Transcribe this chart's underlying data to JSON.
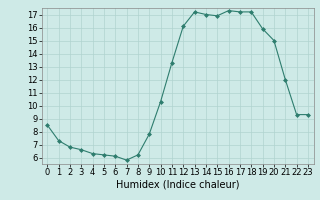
{
  "title": "",
  "xlabel": "Humidex (Indice chaleur)",
  "ylabel": "",
  "x": [
    0,
    1,
    2,
    3,
    4,
    5,
    6,
    7,
    8,
    9,
    10,
    11,
    12,
    13,
    14,
    15,
    16,
    17,
    18,
    19,
    20,
    21,
    22,
    23
  ],
  "y": [
    8.5,
    7.3,
    6.8,
    6.6,
    6.3,
    6.2,
    6.1,
    5.8,
    6.2,
    7.8,
    10.3,
    13.3,
    16.1,
    17.2,
    17.0,
    16.9,
    17.3,
    17.2,
    17.2,
    15.9,
    15.0,
    12.0,
    9.3,
    9.3
  ],
  "line_color": "#2e7d6e",
  "marker": "D",
  "marker_size": 2,
  "bg_color": "#ceeae7",
  "grid_color": "#b0d4d0",
  "xlim": [
    -0.5,
    23.5
  ],
  "ylim": [
    5.5,
    17.5
  ],
  "yticks": [
    6,
    7,
    8,
    9,
    10,
    11,
    12,
    13,
    14,
    15,
    16,
    17
  ],
  "xticks": [
    0,
    1,
    2,
    3,
    4,
    5,
    6,
    7,
    8,
    9,
    10,
    11,
    12,
    13,
    14,
    15,
    16,
    17,
    18,
    19,
    20,
    21,
    22,
    23
  ],
  "tick_fontsize": 6,
  "xlabel_fontsize": 7,
  "linewidth": 0.8
}
